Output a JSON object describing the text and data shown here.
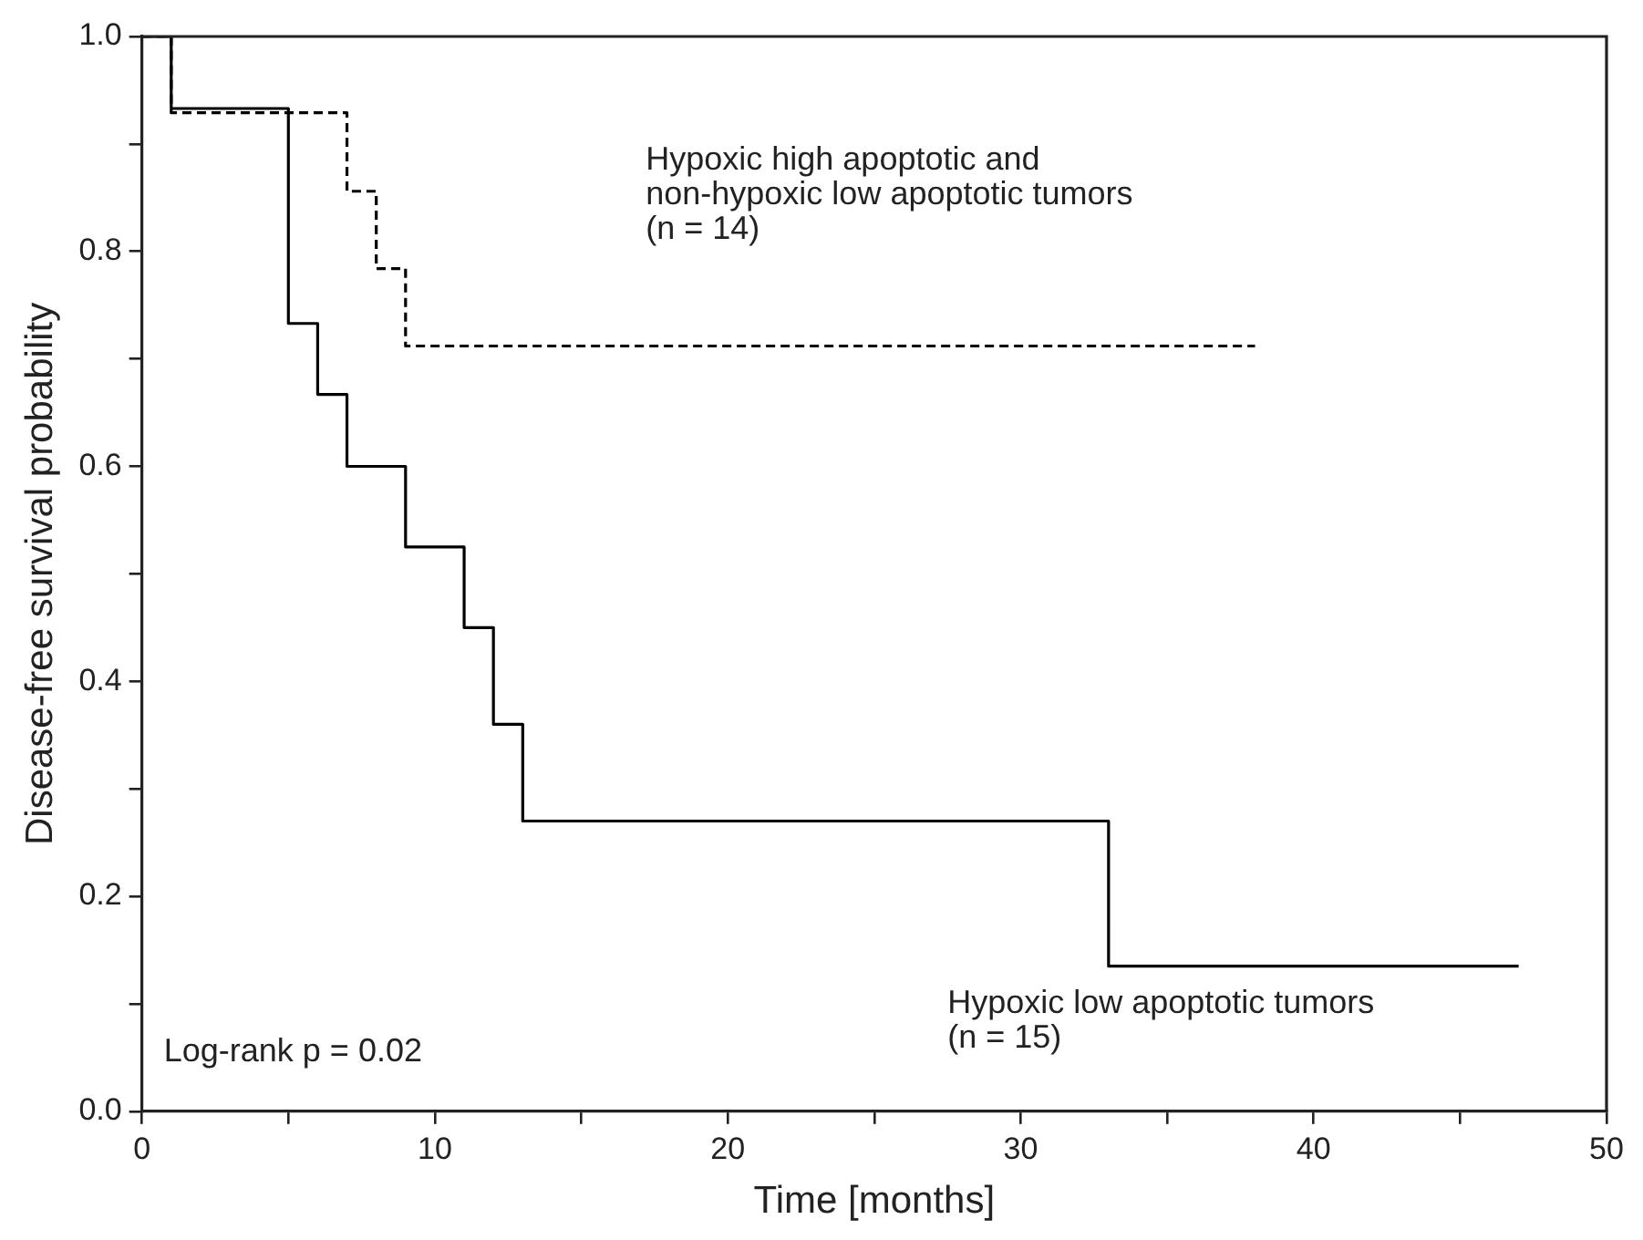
{
  "chart_data": {
    "type": "step",
    "xlabel": "Time [months]",
    "ylabel": "Disease-free survival probability",
    "xlim": [
      0,
      50
    ],
    "xticks": [
      0,
      {
        "value": 5,
        "label": null
      },
      10,
      {
        "value": 15,
        "label": null
      },
      20,
      {
        "value": 25,
        "label": null
      },
      30,
      {
        "value": 35,
        "label": null
      },
      40,
      {
        "value": 45,
        "label": null
      },
      50
    ],
    "ylim": [
      0,
      1
    ],
    "yticks": [
      {
        "value": 0,
        "label": "0.0"
      },
      {
        "value": 0.1,
        "label": null
      },
      0.2,
      {
        "value": 0.3,
        "label": null
      },
      0.4,
      {
        "value": 0.5,
        "label": null
      },
      0.6,
      {
        "value": 0.7,
        "label": null
      },
      0.8,
      {
        "value": 0.9,
        "label": null
      },
      {
        "value": 1,
        "label": "1.0"
      }
    ],
    "grid": false,
    "legend": false,
    "marker": "none",
    "series": [
      {
        "color": "#000000",
        "line_style": "solid",
        "x": [
          0,
          1,
          5,
          6,
          7,
          9,
          11,
          12,
          13,
          33,
          47
        ],
        "values": [
          1,
          0.933,
          0.733,
          0.667,
          0.6,
          0.525,
          0.45,
          0.36,
          0.27,
          0.135,
          0.135
        ]
      },
      {
        "color": "#000000",
        "line_style": "dashed",
        "x": [
          0,
          1,
          7,
          8,
          9,
          38
        ],
        "values": [
          1,
          0.929,
          0.856,
          0.784,
          0.712,
          0.712
        ]
      }
    ],
    "annotations": [
      "Hypoxic high apoptotic and\nnon-hypoxic low apoptotic tumors\n(n = 14)",
      "Hypoxic low apoptotic tumors\n(n = 15)",
      "Log-rank p = 0.02"
    ]
  }
}
